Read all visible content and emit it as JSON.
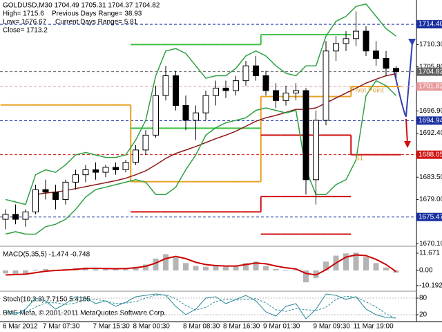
{
  "chart_data": [
    {
      "type": "candlestick",
      "title": "GOLDUSD,M30 1704.49 1705.31 1704.37 1704.82",
      "stats": [
        "High= 1715.6",
        "Previous Days Range= 38.93",
        "Low= 1676.67",
        "Current Days Range= 5.81",
        "Close= 1713.2"
      ],
      "annotations": [
        "Pivot Point",
        "S1"
      ],
      "categories": [
        "6 Mar 2012",
        null,
        null,
        null,
        "7 Mar 07:30",
        null,
        null,
        null,
        null,
        "7 Mar 15:30",
        null,
        null,
        null,
        "8 Mar 00:30",
        null,
        null,
        null,
        null,
        "8 Mar 08:30",
        null,
        null,
        null,
        "8 Mar 16:30",
        null,
        null,
        null,
        "9 Mar 01:30",
        null,
        null,
        null,
        null,
        "9 Mar 09:30",
        null,
        null,
        null,
        "11 Mar 19:00",
        null,
        null,
        null,
        null
      ],
      "open": [
        1675,
        1676,
        1675,
        1676.5,
        1681,
        1680.5,
        1679,
        1682.5,
        1684,
        1685,
        1684.5,
        1685.5,
        1685,
        1686.5,
        1689,
        1692,
        1700,
        1704,
        1698,
        1695,
        1696.5,
        1700,
        1701.5,
        1701,
        1703,
        1706,
        1704,
        1701,
        1699,
        1700.5,
        1701,
        1683,
        1695,
        1709,
        1710.5,
        1711.5,
        1713,
        1709,
        1707.5,
        1705.5
      ],
      "high": [
        1677,
        1678,
        1677,
        1682,
        1683,
        1682,
        1683,
        1685,
        1686,
        1686.5,
        1686,
        1686.5,
        1687,
        1690,
        1693,
        1702,
        1706,
        1705,
        1700,
        1698,
        1701,
        1703,
        1703,
        1704,
        1707,
        1708,
        1705,
        1702.5,
        1702,
        1702.5,
        1701.5,
        1697,
        1711,
        1712,
        1713,
        1717,
        1714,
        1711,
        1709,
        1706
      ],
      "low": [
        1673,
        1674,
        1673.5,
        1676,
        1679,
        1677,
        1678,
        1681,
        1682.5,
        1683,
        1683.5,
        1684,
        1684.5,
        1686,
        1688,
        1691.5,
        1699,
        1697,
        1693,
        1691,
        1695,
        1698,
        1699.5,
        1700,
        1702,
        1703,
        1700,
        1697.5,
        1698,
        1699,
        1680,
        1678,
        1694,
        1707,
        1709,
        1710,
        1708,
        1706,
        1704,
        1703.5
      ],
      "close": [
        1676,
        1675,
        1676.5,
        1681,
        1680.5,
        1679,
        1682.5,
        1684,
        1685,
        1684.5,
        1685.5,
        1685,
        1686.5,
        1689,
        1692,
        1700,
        1704,
        1698,
        1695,
        1696.5,
        1700,
        1701.5,
        1701,
        1703,
        1706,
        1704,
        1701,
        1699,
        1700.5,
        1701,
        1683,
        1695,
        1709,
        1710.5,
        1711.5,
        1713,
        1709,
        1707.5,
        1705.5,
        1704.82
      ],
      "candle_color": "#000000",
      "series": [
        {
          "color": "#8b1a1a",
          "values": [
            null,
            null,
            null,
            1680,
            1680.3,
            1680.5,
            1680.8,
            1681.2,
            1681.6,
            1682,
            1682.4,
            1682.8,
            1683.3,
            1684,
            1684.8,
            1686,
            1687.3,
            1688.3,
            1689,
            1689.7,
            1690.5,
            1691.3,
            1692,
            1692.8,
            1693.8,
            1694.8,
            1695.5,
            1696,
            1696.6,
            1697.2,
            1697.2,
            1697.5,
            1698.5,
            1699.5,
            1700.5,
            1701.5,
            1702.5,
            1703.3,
            1704,
            1704.4
          ]
        },
        {
          "color": "#2ea040",
          "values": [
            1679,
            1678.5,
            1678,
            1684,
            1685,
            1684.5,
            1686,
            1688,
            1688.5,
            1688,
            1687.5,
            1687.5,
            1688,
            1691,
            1695,
            1704,
            1709,
            1709.5,
            1708.5,
            1706,
            1703.5,
            1704,
            1704,
            1705.5,
            1708,
            1709,
            1708,
            1706,
            1704.5,
            1704,
            1706,
            1706,
            1712,
            1715,
            1716,
            1718,
            1718.5,
            1716,
            1713.5,
            1712
          ]
        },
        {
          "color": "#2ea040",
          "values": [
            1672,
            1672.5,
            1672,
            1672,
            1673.5,
            1674,
            1675,
            1677,
            1679.5,
            1681,
            1681.5,
            1682,
            1682.5,
            1683,
            1682.5,
            1680,
            1680,
            1681.5,
            1685,
            1688,
            1692,
            1693.5,
            1694.5,
            1695,
            1695.5,
            1697,
            1697.5,
            1697,
            1696.5,
            1697,
            1685,
            1680,
            1680,
            1682,
            1683,
            1687,
            1700,
            1703,
            1702,
            1700
          ]
        }
      ],
      "levels": [
        {
          "color": "#e8a020",
          "values": [
            1698.1,
            1698.1,
            1698.1,
            1698.1,
            1698.1,
            1698.1,
            1698.1,
            1698.1,
            1698.1,
            1698.1,
            1698.1,
            1698.1,
            1698.1,
            1682.6,
            1682.6,
            1682.6,
            1682.6,
            1682.6,
            1682.6,
            1682.6,
            1682.6,
            1682.6,
            1682.6,
            1682.6,
            1682.6,
            1682.6,
            1699.8,
            1699.8,
            1699.8,
            1699.8,
            1699.8,
            1699.8,
            1699.8,
            1699.8,
            1699.8,
            1701.82,
            1701.82,
            1701.82,
            1701.82,
            1701.82
          ]
        },
        {
          "color": "#3cc040",
          "values": [
            null,
            null,
            null,
            null,
            null,
            null,
            null,
            null,
            null,
            null,
            null,
            null,
            null,
            1710.3,
            1710.3,
            1710.3,
            1710.3,
            1710.3,
            1710.3,
            1710.3,
            1710.3,
            1710.3,
            1710.3,
            1710.3,
            1710.3,
            1710.3,
            1712.3,
            1712.3,
            1712.3,
            1712.3,
            1712.3,
            1712.3,
            1712.3,
            1712.3,
            1712.3,
            null,
            null,
            null,
            null,
            null
          ]
        },
        {
          "color": "#3cc040",
          "values": [
            null,
            null,
            null,
            null,
            null,
            null,
            null,
            null,
            null,
            null,
            null,
            null,
            null,
            1693.4,
            1693.4,
            1693.4,
            1693.4,
            1693.4,
            1693.4,
            1693.4,
            1693.4,
            1693.4,
            1693.4,
            1693.4,
            1693.4,
            1693.4,
            null,
            null,
            null,
            null,
            null,
            null,
            null,
            null,
            null,
            null,
            null,
            null,
            null,
            null
          ]
        },
        {
          "color": "#d01010",
          "values": [
            null,
            null,
            null,
            null,
            null,
            null,
            null,
            null,
            null,
            null,
            null,
            null,
            null,
            null,
            null,
            null,
            null,
            null,
            null,
            null,
            null,
            null,
            null,
            null,
            null,
            null,
            1692,
            1692,
            1692,
            1692,
            1692,
            1692,
            1692,
            1692,
            1692,
            1688.05,
            1688.05,
            1688.05,
            1688.05,
            1688.05
          ]
        },
        {
          "color": "#d01010",
          "values": [
            null,
            null,
            null,
            null,
            null,
            null,
            null,
            null,
            null,
            null,
            null,
            null,
            null,
            1676.5,
            1676.5,
            1676.5,
            1676.5,
            1676.5,
            1676.5,
            1676.5,
            1676.5,
            1676.5,
            1676.5,
            1676.5,
            1676.5,
            1676.5,
            1679.6,
            1679.6,
            1679.6,
            1679.6,
            1679.6,
            1679.6,
            1679.6,
            1679.6,
            1679.6,
            null,
            null,
            null,
            null,
            null
          ]
        },
        {
          "color": "#d01010",
          "values": [
            null,
            null,
            null,
            null,
            null,
            null,
            null,
            null,
            null,
            null,
            null,
            null,
            null,
            null,
            null,
            null,
            null,
            null,
            null,
            null,
            null,
            null,
            null,
            null,
            null,
            null,
            1672,
            1672,
            1672,
            1672,
            1672,
            1672,
            1672,
            1672,
            1672,
            null,
            null,
            null,
            null,
            null
          ]
        }
      ],
      "price_levels": [
        {
          "value": 1714.4,
          "label": "1714.40",
          "color": "#1a2fa0"
        },
        {
          "value": 1704.82,
          "label": "1704.82",
          "color": "#606060"
        },
        {
          "value": 1701.82,
          "label": "1701.82",
          "color": "#e89a9a"
        },
        {
          "value": 1694.94,
          "label": "1694.94",
          "color": "#1a2fa0"
        },
        {
          "value": 1688.05,
          "label": "1688.05",
          "color": "#d01010"
        },
        {
          "value": 1675.47,
          "label": "1675.47",
          "color": "#1a2fa0"
        }
      ],
      "ylim": [
        1669.7,
        1719.3
      ],
      "yticks": [
        {
          "value": 1710.3,
          "label": "1710.30"
        },
        {
          "value": 1705.8,
          "label": "1705.80"
        },
        {
          "value": 1696.9,
          "label": "1696.90"
        },
        {
          "value": 1692.4,
          "label": "1692.40"
        },
        {
          "value": 1683.5,
          "label": "1683.50"
        },
        {
          "value": 1679,
          "label": "1679.00"
        },
        {
          "value": 1670.1,
          "label": "1670.10"
        }
      ]
    },
    {
      "type": "bar",
      "title": "MACD(5,35,5) -1.474 -0.748",
      "color": "#b4b4b4",
      "values": [
        -2,
        -2.5,
        -2,
        0.5,
        1,
        0.5,
        1,
        1.5,
        2,
        1.5,
        1,
        1,
        1.5,
        2.5,
        4,
        8,
        11,
        9,
        5,
        3,
        2.5,
        3,
        2.5,
        3,
        5,
        6,
        3,
        1,
        0.5,
        0.5,
        -8,
        -5,
        6,
        10,
        11.5,
        12,
        9,
        5,
        2,
        -1.474
      ],
      "series": [
        {
          "color": "#cc0000",
          "values": [
            -3,
            -2.8,
            -2.5,
            -1.5,
            -0.5,
            0,
            0.3,
            0.8,
            1.3,
            1.5,
            1.3,
            1.2,
            1.3,
            1.8,
            2.8,
            5,
            8,
            9.5,
            8,
            5.5,
            4,
            3.3,
            3,
            3,
            4,
            5,
            4.5,
            3,
            1.8,
            1,
            -2,
            -3,
            0.5,
            5,
            9,
            10.5,
            10,
            7.5,
            4,
            -0.748
          ]
        }
      ],
      "ylim": [
        -13.5,
        15.4
      ],
      "yticks": [
        11.671,
        {
          "value": 0,
          "label": "0.00"
        },
        -10.192
      ]
    },
    {
      "type": "line",
      "title": "Stoch(10,3,3) 7.7150 5.4165",
      "note": "BMF-Meta, © 2001-2011 MetaQuotes Software Corp.",
      "series": [
        {
          "color": "#2a8a9a",
          "values": [
            30,
            20,
            40,
            80,
            70,
            40,
            60,
            85,
            80,
            60,
            70,
            50,
            65,
            85,
            90,
            95,
            90,
            50,
            20,
            40,
            80,
            85,
            60,
            75,
            90,
            70,
            30,
            15,
            50,
            60,
            5,
            40,
            95,
            90,
            75,
            85,
            40,
            20,
            10,
            7.715
          ]
        },
        {
          "color": "#2a8a9a",
          "dashed": true,
          "values": [
            35,
            28,
            30,
            47,
            63,
            63,
            57,
            62,
            75,
            75,
            70,
            60,
            62,
            67,
            80,
            90,
            92,
            78,
            53,
            37,
            47,
            68,
            75,
            73,
            75,
            78,
            63,
            38,
            32,
            42,
            38,
            35,
            47,
            75,
            87,
            83,
            67,
            48,
            23,
            5.4165
          ]
        }
      ],
      "ylim": [
        0,
        100
      ],
      "yticks": [
        80,
        20
      ]
    }
  ]
}
